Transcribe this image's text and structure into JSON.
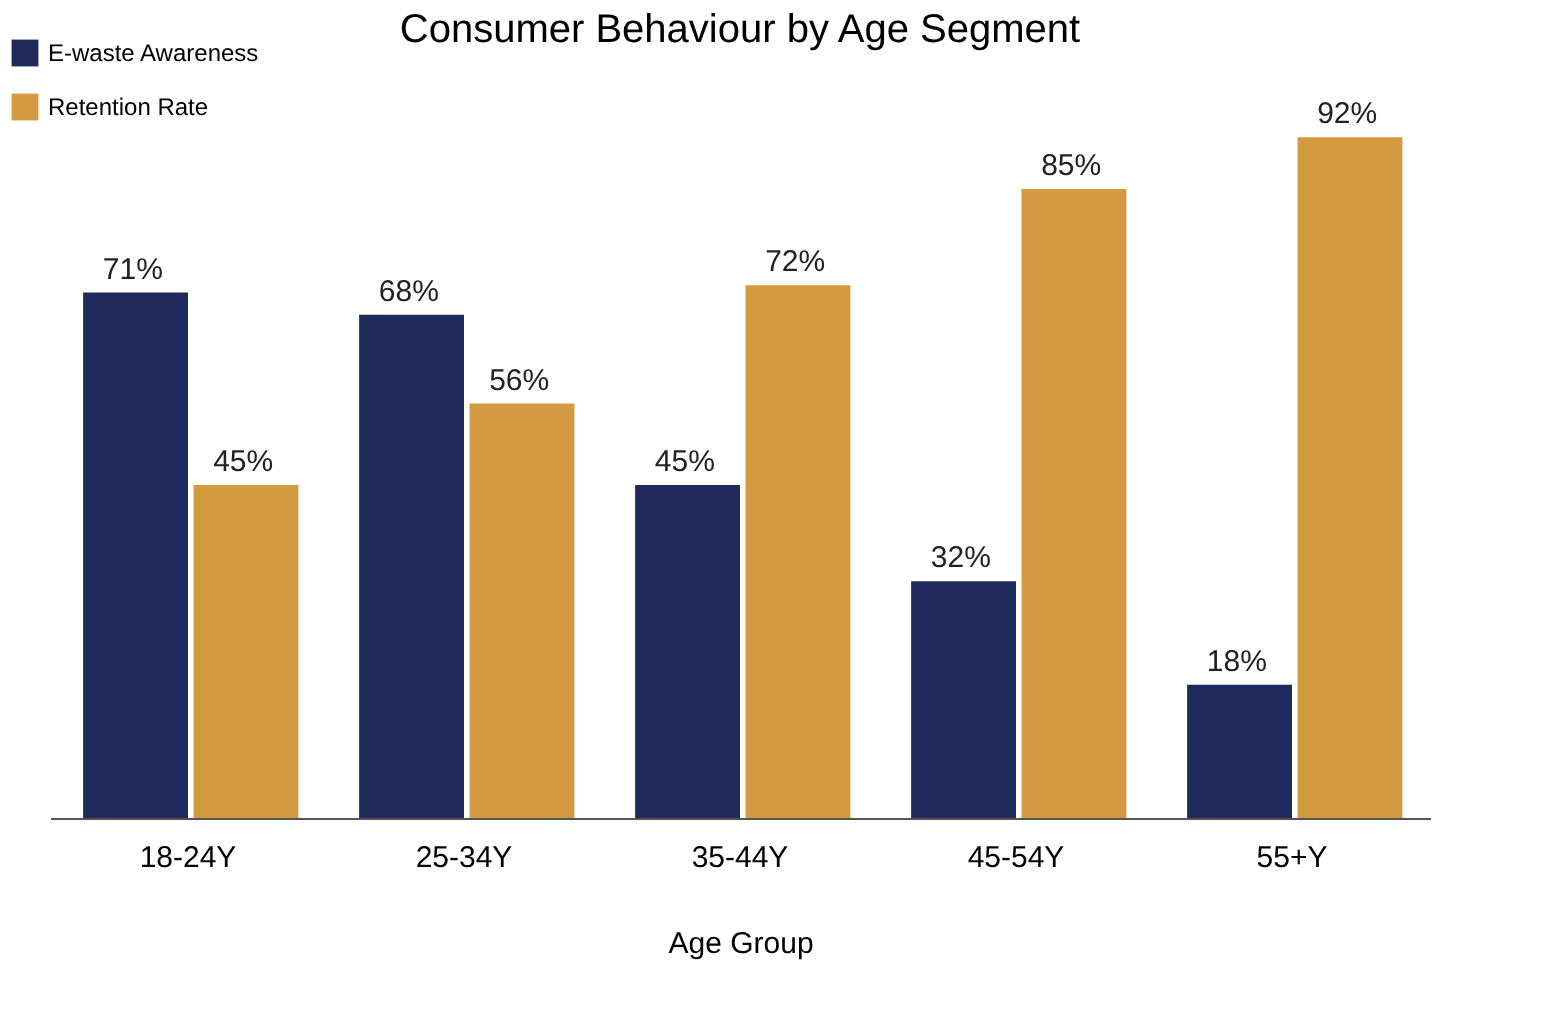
{
  "chart_data": {
    "type": "bar",
    "title": "Consumer Behaviour by Age Segment",
    "xlabel": "Age Group",
    "categories": [
      "18-24Y",
      "25-34Y",
      "35-44Y",
      "45-54Y",
      "55+Y"
    ],
    "series": [
      {
        "name": "E-waste Awareness",
        "color": "#1f2a5c",
        "values": [
          71,
          68,
          45,
          32,
          18
        ],
        "value_labels": [
          "71%",
          "68%",
          "45%",
          "32%",
          "18%"
        ]
      },
      {
        "name": "Retention Rate",
        "color": "#d39b40",
        "values": [
          45,
          56,
          72,
          85,
          92
        ],
        "value_labels": [
          "45%",
          "56%",
          "72%",
          "85%",
          "92%"
        ]
      }
    ],
    "legend": "top left",
    "grid": false,
    "tick_labels": "x"
  }
}
